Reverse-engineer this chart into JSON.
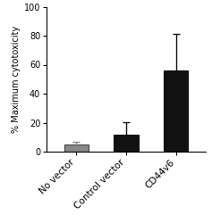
{
  "categories": [
    "No vector",
    "Control vector",
    "CD44v6"
  ],
  "values": [
    5.0,
    12.0,
    56.0
  ],
  "errors_upper": [
    1.5,
    8.5,
    25.0
  ],
  "errors_lower": [
    1.5,
    5.0,
    15.0
  ],
  "bar_colors": [
    "#888888",
    "#111111",
    "#111111"
  ],
  "error_colors": [
    "#888888",
    "#111111",
    "#111111"
  ],
  "ylabel": "% Maximum cytotoxicity",
  "ylim": [
    0,
    100
  ],
  "yticks": [
    0,
    20,
    40,
    60,
    80,
    100
  ],
  "background_color": "#ffffff",
  "bar_width": 0.5,
  "capsize": 3,
  "ylabel_fontsize": 7,
  "tick_fontsize": 7,
  "xlabel_fontsize": 7.5
}
